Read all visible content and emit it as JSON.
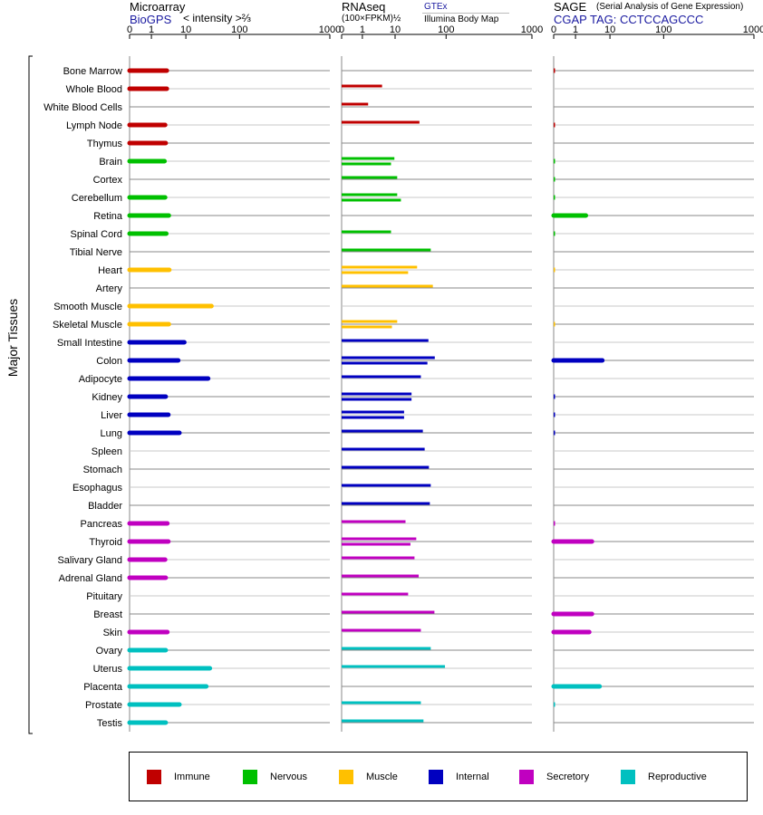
{
  "panels": {
    "microarray": {
      "title": "Microarray",
      "source": "BioGPS",
      "scale_label": "< intensity >⅔"
    },
    "rnaseq": {
      "title": "RNAseq",
      "unit_label": "(100×FPKM)½",
      "source_top": "GTEx",
      "source_bottom": "Illumina Body Map"
    },
    "sage": {
      "title": "SAGE",
      "subtitle": "(Serial Analysis of Gene Expression)",
      "tag_label": "CGAP TAG: CCTCCAGCCC"
    }
  },
  "tick_labels": [
    "0",
    "1",
    "10",
    "100",
    "1000"
  ],
  "y_axis_label": "Major Tissues",
  "legend": [
    {
      "name": "Immune",
      "color": "#c00000"
    },
    {
      "name": "Nervous",
      "color": "#00c000"
    },
    {
      "name": "Muscle",
      "color": "#ffc000"
    },
    {
      "name": "Internal",
      "color": "#0000c0"
    },
    {
      "name": "Secretory",
      "color": "#c000c0"
    },
    {
      "name": "Reproductive",
      "color": "#00c0c0"
    }
  ],
  "chart_data": {
    "type": "bar",
    "orientation": "horizontal",
    "x_scale": "nonlinear (0, 1, 10, 100, 1000)",
    "xlim": [
      0,
      1000
    ],
    "categories": [
      "Bone Marrow",
      "Whole Blood",
      "White Blood Cells",
      "Lymph Node",
      "Thymus",
      "Brain",
      "Cortex",
      "Cerebellum",
      "Retina",
      "Spinal Cord",
      "Tibial Nerve",
      "Heart",
      "Artery",
      "Smooth Muscle",
      "Skeletal Muscle",
      "Small Intestine",
      "Colon",
      "Adipocyte",
      "Kidney",
      "Liver",
      "Lung",
      "Spleen",
      "Stomach",
      "Esophagus",
      "Bladder",
      "Pancreas",
      "Thyroid",
      "Salivary Gland",
      "Adrenal Gland",
      "Pituitary",
      "Breast",
      "Skin",
      "Ovary",
      "Uterus",
      "Placenta",
      "Prostate",
      "Testis"
    ],
    "groups": [
      "Immune",
      "Immune",
      "Immune",
      "Immune",
      "Immune",
      "Nervous",
      "Nervous",
      "Nervous",
      "Nervous",
      "Nervous",
      "Nervous",
      "Muscle",
      "Muscle",
      "Muscle",
      "Muscle",
      "Internal",
      "Internal",
      "Internal",
      "Internal",
      "Internal",
      "Internal",
      "Internal",
      "Internal",
      "Internal",
      "Internal",
      "Secretory",
      "Secretory",
      "Secretory",
      "Secretory",
      "Secretory",
      "Secretory",
      "Secretory",
      "Reproductive",
      "Reproductive",
      "Reproductive",
      "Reproductive",
      "Reproductive"
    ],
    "series": [
      {
        "name": "Microarray",
        "values": [
          2.8,
          2.8,
          null,
          2.5,
          2.6,
          2.4,
          null,
          2.5,
          3.2,
          2.7,
          null,
          3.3,
          null,
          30,
          3.2,
          9,
          6,
          26,
          2.6,
          3.1,
          6.5,
          null,
          null,
          null,
          null,
          2.9,
          3.1,
          2.5,
          2.6,
          null,
          null,
          2.9,
          2.6,
          28,
          24,
          6.5,
          2.6
        ]
      },
      {
        "name": "RNAseq GTEx",
        "values": [
          null,
          4,
          1.5,
          30,
          null,
          9.5,
          null,
          11,
          null,
          null,
          null,
          27,
          null,
          null,
          11,
          null,
          60,
          null,
          21,
          15,
          null,
          null,
          null,
          null,
          null,
          null,
          26,
          null,
          null,
          null,
          null,
          null,
          null,
          null,
          null,
          null,
          null
        ]
      },
      {
        "name": "RNAseq Illumina Body Map",
        "values": [
          null,
          null,
          null,
          null,
          null,
          7.5,
          11,
          13,
          null,
          7.5,
          50,
          18,
          55,
          null,
          8,
          45,
          43,
          32,
          21,
          15,
          35,
          38,
          46,
          50,
          48,
          16,
          20,
          24,
          29,
          18,
          59,
          32,
          50,
          95,
          null,
          32,
          36
        ]
      },
      {
        "name": "SAGE",
        "values": [
          0.05,
          null,
          null,
          0.05,
          null,
          0.05,
          0.05,
          0.05,
          2,
          0.05,
          null,
          0.03,
          null,
          null,
          0.03,
          null,
          6,
          null,
          0.05,
          0.05,
          0.05,
          null,
          null,
          null,
          null,
          0.05,
          3,
          null,
          null,
          null,
          3,
          2.5,
          null,
          null,
          5,
          0.03,
          null
        ]
      }
    ]
  }
}
